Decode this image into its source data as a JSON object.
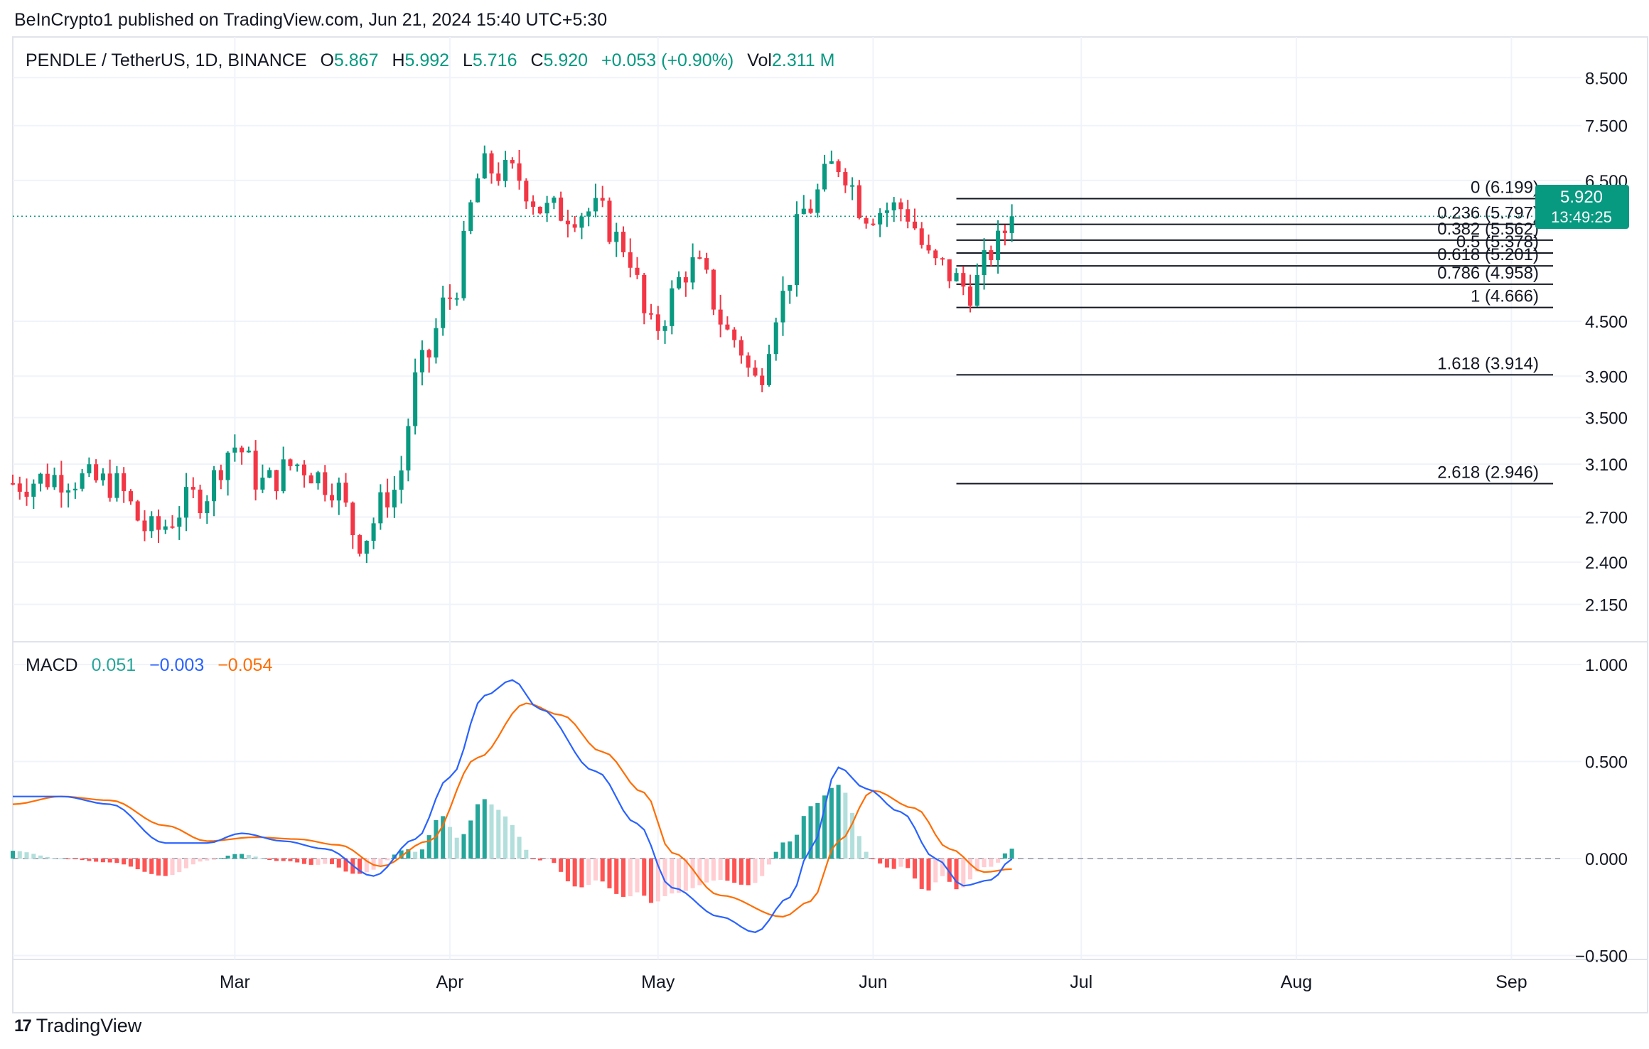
{
  "publish_line": "BeInCrypto1 published on TradingView.com, Jun 21, 2024 15:40 UTC+5:30",
  "header": {
    "pair": "PENDLE / TetherUS, 1D, BINANCE",
    "open_label": "O",
    "open": "5.867",
    "high_label": "H",
    "high": "5.992",
    "low_label": "L",
    "low": "5.716",
    "close_label": "C",
    "close": "5.920",
    "change": "+0.053 (+0.90%)",
    "vol_label": "Vol",
    "vol": "2.311 M"
  },
  "macd_header": {
    "label": "MACD",
    "hist": "0.051",
    "macd": "−0.003",
    "signal": "−0.054"
  },
  "price_tag": {
    "price": "5.920",
    "countdown": "13:49:25"
  },
  "brand": "TradingView",
  "colors": {
    "up": "#089981",
    "down": "#f23645",
    "hist_up_strong": "#26a69a",
    "hist_up_weak": "#b2dfdb",
    "hist_down_strong": "#ff5252",
    "hist_down_weak": "#ffcdd2",
    "macd_line": "#2962ff",
    "signal_line": "#ff6d00"
  },
  "chart_data": [
    {
      "type": "candlestick",
      "title": "PENDLE / TetherUS, 1D, BINANCE",
      "y_scale": "log",
      "ylim": [
        1.95,
        9.4
      ],
      "y_ticks": [
        "8.500",
        "7.500",
        "6.500",
        "4.500",
        "3.900",
        "3.500",
        "3.100",
        "2.700",
        "2.400",
        "2.150"
      ],
      "x_ticks": [
        "Mar",
        "Apr",
        "May",
        "Jun",
        "Jul",
        "Aug",
        "Sep"
      ],
      "x_tick_dates": [
        "2024-03-01",
        "2024-04-01",
        "2024-05-01",
        "2024-06-01",
        "2024-07-01",
        "2024-08-01",
        "2024-09-01"
      ],
      "x_range": [
        "2024-01-29",
        "2024-09-07"
      ],
      "current_price": 5.92,
      "ohlc_knots": [
        {
          "date": "2024-01-29",
          "close": 2.95
        },
        {
          "date": "2024-02-05",
          "close": 3.0
        },
        {
          "date": "2024-02-12",
          "close": 2.95
        },
        {
          "date": "2024-02-18",
          "close": 2.6
        },
        {
          "date": "2024-02-25",
          "close": 2.85
        },
        {
          "date": "2024-03-01",
          "close": 3.25
        },
        {
          "date": "2024-03-05",
          "close": 2.95
        },
        {
          "date": "2024-03-10",
          "close": 3.1
        },
        {
          "date": "2024-03-15",
          "close": 2.95
        },
        {
          "date": "2024-03-19",
          "close": 2.55
        },
        {
          "date": "2024-03-24",
          "close": 2.9
        },
        {
          "date": "2024-03-28",
          "close": 4.0
        },
        {
          "date": "2024-04-01",
          "close": 4.8
        },
        {
          "date": "2024-04-06",
          "close": 6.7
        },
        {
          "date": "2024-04-10",
          "close": 6.6
        },
        {
          "date": "2024-04-15",
          "close": 6.0
        },
        {
          "date": "2024-04-22",
          "close": 6.0
        },
        {
          "date": "2024-04-26",
          "close": 5.5
        },
        {
          "date": "2024-04-30",
          "close": 4.4
        },
        {
          "date": "2024-05-06",
          "close": 5.2
        },
        {
          "date": "2024-05-12",
          "close": 4.3
        },
        {
          "date": "2024-05-15",
          "close": 3.85
        },
        {
          "date": "2024-05-19",
          "close": 4.8
        },
        {
          "date": "2024-05-22",
          "close": 6.0
        },
        {
          "date": "2024-05-27",
          "close": 6.8
        },
        {
          "date": "2024-05-31",
          "close": 6.0
        },
        {
          "date": "2024-06-05",
          "close": 6.05
        },
        {
          "date": "2024-06-10",
          "close": 5.2
        },
        {
          "date": "2024-06-15",
          "close": 4.9
        },
        {
          "date": "2024-06-19",
          "close": 5.5
        },
        {
          "date": "2024-06-21",
          "close": 5.92
        }
      ],
      "fibonacci": {
        "from_date": "2024-06-13",
        "to_date": "2024-09-07",
        "levels": [
          {
            "ratio": "0",
            "price": 6.199,
            "label": "0 (6.199)"
          },
          {
            "ratio": "0.236",
            "price": 5.797,
            "label": "0.236 (5.797)"
          },
          {
            "ratio": "0.382",
            "price": 5.562,
            "label": "0.382 (5.562)"
          },
          {
            "ratio": "0.5",
            "price": 5.378,
            "label": "0.5 (5.378)"
          },
          {
            "ratio": "0.618",
            "price": 5.201,
            "label": "0.618 (5.201)"
          },
          {
            "ratio": "0.786",
            "price": 4.958,
            "label": "0.786 (4.958)"
          },
          {
            "ratio": "1",
            "price": 4.666,
            "label": "1 (4.666)"
          },
          {
            "ratio": "1.618",
            "price": 3.914,
            "label": "1.618 (3.914)"
          },
          {
            "ratio": "2.618",
            "price": 2.946,
            "label": "2.618 (2.946)"
          }
        ]
      }
    },
    {
      "type": "line+histogram",
      "title": "MACD",
      "ylim": [
        -0.52,
        1.0
      ],
      "y_ticks": [
        "1.000",
        "0.500",
        "0.000",
        "−0.500"
      ],
      "series": [
        {
          "name": "",
          "kind": "macd",
          "knots": [
            {
              "date": "2024-01-29",
              "value": 0.32
            },
            {
              "date": "2024-02-05",
              "value": 0.32
            },
            {
              "date": "2024-02-12",
              "value": 0.28
            },
            {
              "date": "2024-02-20",
              "value": 0.08
            },
            {
              "date": "2024-02-26",
              "value": 0.08
            },
            {
              "date": "2024-03-02",
              "value": 0.13
            },
            {
              "date": "2024-03-08",
              "value": 0.09
            },
            {
              "date": "2024-03-14",
              "value": 0.05
            },
            {
              "date": "2024-03-21",
              "value": -0.09
            },
            {
              "date": "2024-03-27",
              "value": 0.1
            },
            {
              "date": "2024-04-01",
              "value": 0.42
            },
            {
              "date": "2024-04-06",
              "value": 0.84
            },
            {
              "date": "2024-04-10",
              "value": 0.92
            },
            {
              "date": "2024-04-14",
              "value": 0.77
            },
            {
              "date": "2024-04-22",
              "value": 0.45
            },
            {
              "date": "2024-04-28",
              "value": 0.18
            },
            {
              "date": "2024-05-03",
              "value": -0.15
            },
            {
              "date": "2024-05-10",
              "value": -0.3
            },
            {
              "date": "2024-05-15",
              "value": -0.38
            },
            {
              "date": "2024-05-20",
              "value": -0.2
            },
            {
              "date": "2024-05-23",
              "value": 0.05
            },
            {
              "date": "2024-05-27",
              "value": 0.47
            },
            {
              "date": "2024-05-31",
              "value": 0.36
            },
            {
              "date": "2024-06-05",
              "value": 0.24
            },
            {
              "date": "2024-06-10",
              "value": 0.0
            },
            {
              "date": "2024-06-14",
              "value": -0.14
            },
            {
              "date": "2024-06-18",
              "value": -0.11
            },
            {
              "date": "2024-06-21",
              "value": -0.003
            }
          ]
        },
        {
          "name": "",
          "kind": "signal",
          "knots": [
            {
              "date": "2024-01-29",
              "value": 0.28
            },
            {
              "date": "2024-02-05",
              "value": 0.32
            },
            {
              "date": "2024-02-12",
              "value": 0.3
            },
            {
              "date": "2024-02-20",
              "value": 0.17
            },
            {
              "date": "2024-02-26",
              "value": 0.09
            },
            {
              "date": "2024-03-04",
              "value": 0.11
            },
            {
              "date": "2024-03-10",
              "value": 0.1
            },
            {
              "date": "2024-03-16",
              "value": 0.07
            },
            {
              "date": "2024-03-22",
              "value": -0.04
            },
            {
              "date": "2024-03-29",
              "value": 0.09
            },
            {
              "date": "2024-04-05",
              "value": 0.52
            },
            {
              "date": "2024-04-12",
              "value": 0.8
            },
            {
              "date": "2024-04-17",
              "value": 0.74
            },
            {
              "date": "2024-04-23",
              "value": 0.55
            },
            {
              "date": "2024-04-29",
              "value": 0.34
            },
            {
              "date": "2024-05-03",
              "value": 0.03
            },
            {
              "date": "2024-05-10",
              "value": -0.19
            },
            {
              "date": "2024-05-19",
              "value": -0.3
            },
            {
              "date": "2024-05-23",
              "value": -0.22
            },
            {
              "date": "2024-05-27",
              "value": 0.09
            },
            {
              "date": "2024-06-01",
              "value": 0.35
            },
            {
              "date": "2024-06-07",
              "value": 0.26
            },
            {
              "date": "2024-06-12",
              "value": 0.05
            },
            {
              "date": "2024-06-17",
              "value": -0.07
            },
            {
              "date": "2024-06-21",
              "value": -0.054
            }
          ]
        }
      ]
    }
  ]
}
